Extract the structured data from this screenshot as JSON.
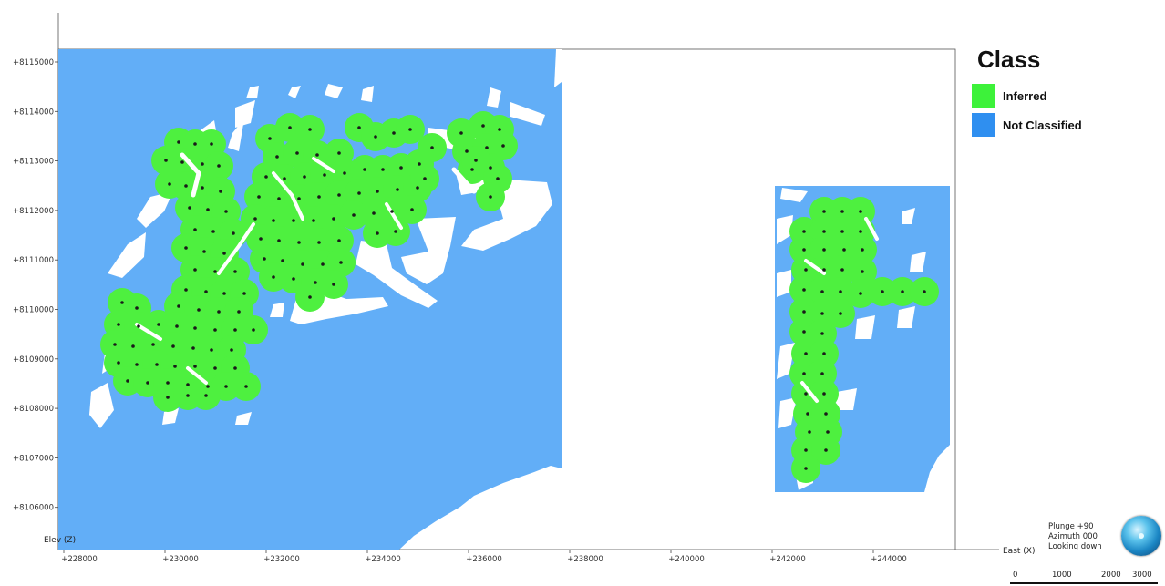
{
  "map": {
    "y_axis": {
      "title": "Elev (Z)",
      "ticks": [
        {
          "label": "+8115000",
          "value": 8115000
        },
        {
          "label": "+8114000",
          "value": 8114000
        },
        {
          "label": "+8113000",
          "value": 8113000
        },
        {
          "label": "+8112000",
          "value": 8112000
        },
        {
          "label": "+8111000",
          "value": 8111000
        },
        {
          "label": "+8110000",
          "value": 8110000
        },
        {
          "label": "+8109000",
          "value": 8109000
        },
        {
          "label": "+8108000",
          "value": 8108000
        },
        {
          "label": "+8107000",
          "value": 8107000
        },
        {
          "label": "+8106000",
          "value": 8106000
        }
      ]
    },
    "x_axis": {
      "title": "East (X)",
      "ticks": [
        {
          "label": "+228000",
          "value": 228000
        },
        {
          "label": "+230000",
          "value": 230000
        },
        {
          "label": "+232000",
          "value": 232000
        },
        {
          "label": "+234000",
          "value": 234000
        },
        {
          "label": "+236000",
          "value": 236000
        },
        {
          "label": "+238000",
          "value": 238000
        },
        {
          "label": "+240000",
          "value": 240000
        },
        {
          "label": "+242000",
          "value": 242000
        },
        {
          "label": "+244000",
          "value": 244000
        }
      ]
    },
    "colors": {
      "inferred": "#4ef03f",
      "not_classified": "#62aef7",
      "drillhole": "#1a1a1a",
      "void": "#ffffff"
    }
  },
  "legend": {
    "title": "Class",
    "items": [
      {
        "label": "Inferred",
        "color": "#3df23a"
      },
      {
        "label": "Not Classified",
        "color": "#2f8ff0"
      }
    ]
  },
  "view": {
    "plunge": "Plunge +90",
    "azimuth": "Azimuth 000",
    "looking": "Looking down"
  },
  "scale_bar": {
    "labels": [
      "0",
      "1000",
      "2000",
      "3000"
    ]
  }
}
